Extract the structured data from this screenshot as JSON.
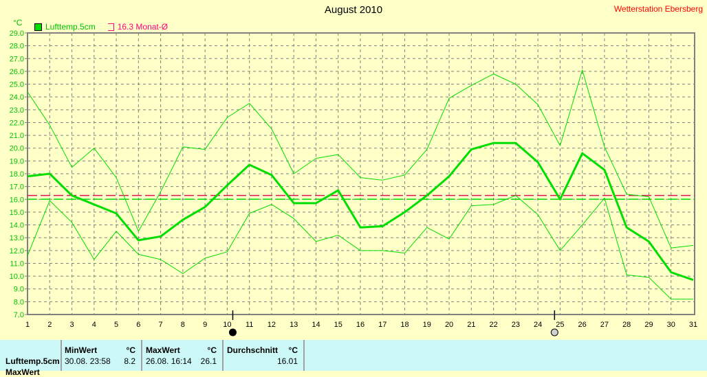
{
  "title": "August 2010",
  "station": "Wetterstation Ebersberg",
  "unit": "°C",
  "legend": {
    "series": "Lufttemp.5cm",
    "monthly_avg": "16.3 Monat-Ø"
  },
  "colors": {
    "series": "#00dd00",
    "monthly_avg": "#dc1450",
    "avg_line": "#00dd00",
    "grid": "#808080",
    "background": "#ffffc8",
    "table": "#ccf8f8"
  },
  "chart_data": {
    "type": "line",
    "title": "August 2010",
    "ylabel": "°C",
    "ylim": [
      7.0,
      29.0
    ],
    "yticks": [
      "7.0",
      "8.0",
      "9.0",
      "10.0",
      "11.0",
      "12.0",
      "13.0",
      "14.0",
      "15.0",
      "16.0",
      "17.0",
      "18.0",
      "19.0",
      "20.0",
      "21.0",
      "22.0",
      "23.0",
      "24.0",
      "25.0",
      "26.0",
      "27.0",
      "28.0",
      "29.0"
    ],
    "x": [
      1,
      2,
      3,
      4,
      5,
      6,
      7,
      8,
      9,
      10,
      11,
      12,
      13,
      14,
      15,
      16,
      17,
      18,
      19,
      20,
      21,
      22,
      23,
      24,
      25,
      26,
      27,
      28,
      29,
      30,
      31
    ],
    "grid": true,
    "series": [
      {
        "name": "Lufttemp.5cm",
        "role": "mean",
        "values": [
          17.8,
          18.0,
          16.3,
          15.6,
          14.9,
          12.8,
          13.1,
          14.4,
          15.4,
          17.1,
          18.7,
          17.9,
          15.7,
          15.7,
          16.7,
          13.8,
          13.9,
          15.0,
          16.3,
          17.8,
          19.9,
          20.4,
          20.4,
          18.9,
          16.0,
          19.6,
          18.3,
          13.8,
          12.7,
          10.3,
          9.7
        ]
      },
      {
        "role": "max",
        "values": [
          24.4,
          21.8,
          18.5,
          20.0,
          17.7,
          13.5,
          16.6,
          20.1,
          19.9,
          22.4,
          23.5,
          21.5,
          18.0,
          19.2,
          19.5,
          17.7,
          17.5,
          17.9,
          19.9,
          23.9,
          24.9,
          25.8,
          25.0,
          23.4,
          20.2,
          26.1,
          20.1,
          16.4,
          16.2,
          12.2,
          12.4
        ]
      },
      {
        "role": "min",
        "values": [
          11.6,
          15.9,
          14.2,
          11.3,
          13.5,
          11.7,
          11.3,
          10.2,
          11.4,
          11.9,
          14.9,
          15.6,
          14.5,
          12.7,
          13.2,
          12.0,
          12.0,
          11.8,
          13.8,
          12.9,
          15.5,
          15.6,
          16.3,
          14.8,
          12.0,
          14.0,
          16.1,
          10.1,
          9.9,
          8.2,
          8.2
        ]
      }
    ],
    "reference_lines": [
      {
        "name": "16.3 Monat-Ø",
        "value": 16.3
      },
      {
        "value": 16.01
      }
    ],
    "moon_phases": [
      {
        "phase": "new-moon",
        "day": 10.25
      },
      {
        "phase": "full-moon",
        "day": 24.75
      }
    ]
  },
  "table": {
    "row_label": "Lufttemp.5cm",
    "row2_label": "MaxWert",
    "min": {
      "header": "MinWert",
      "unit": "°C",
      "time": "30.08.  23:58",
      "value": "8.2"
    },
    "max": {
      "header": "MaxWert",
      "unit": "°C",
      "time": "26.08.  16:14",
      "value": "26.1"
    },
    "avg": {
      "header": "Durchschnitt",
      "unit": "°C",
      "value": "16.01"
    }
  }
}
